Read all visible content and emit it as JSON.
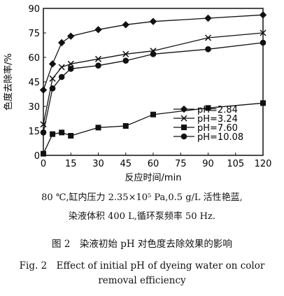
{
  "chart_data": {
    "type": "line",
    "xlabel": "反应时间/min",
    "ylabel": "色度去除率/%",
    "xlim": [
      0,
      120
    ],
    "ylim": [
      0,
      90
    ],
    "xticks": [
      0,
      15,
      30,
      45,
      60,
      75,
      90,
      105,
      120
    ],
    "yticks": [
      0,
      15,
      30,
      45,
      60,
      75,
      90
    ],
    "legend_position": "bottom-right",
    "x": [
      0,
      5,
      10,
      15,
      30,
      45,
      60,
      90,
      120
    ],
    "series": [
      {
        "name": "pH=2.84",
        "marker": "diamond",
        "values": [
          40,
          56,
          69,
          73,
          77,
          80,
          82,
          84,
          86
        ]
      },
      {
        "name": "pH=3.24",
        "marker": "cross",
        "values": [
          19,
          47,
          54,
          56,
          59,
          62,
          64,
          72,
          75
        ]
      },
      {
        "name": "pH=7.60",
        "marker": "square",
        "values": [
          1,
          13,
          14,
          12,
          17,
          18,
          25,
          29,
          32
        ]
      },
      {
        "name": "pH=10.08",
        "marker": "circle",
        "values": [
          14,
          41,
          48,
          53,
          55,
          58,
          62,
          65,
          69
        ]
      }
    ]
  },
  "notes": {
    "line1": "80 ℃,缸内压力 2.35×10⁵ Pa,0.5 g/L 活性艳蓝,",
    "line2": "染液体积 400 L,循环泵频率 50 Hz."
  },
  "caption": {
    "cn": "图 2　染液初始 pH 对色度去除效果的影响",
    "en_line1": "Fig. 2　Effect of initial pH of dyeing water on color",
    "en_line2": "removal efficiency"
  }
}
